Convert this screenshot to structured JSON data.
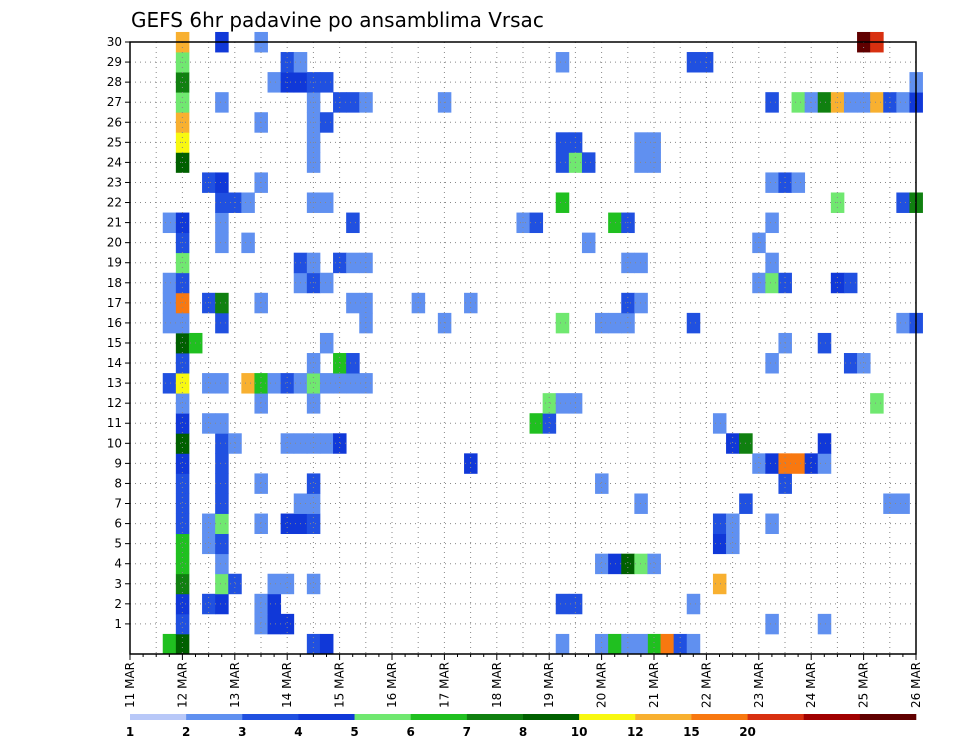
{
  "chart_data": {
    "type": "heatmap",
    "title": "GEFS 6hr padavine po ansamblima Vrsac",
    "x_tick_labels": [
      "11 MAR",
      "12 MAR",
      "13 MAR",
      "14 MAR",
      "15 MAR",
      "16 MAR",
      "17 MAR",
      "18 MAR",
      "19 MAR",
      "20 MAR",
      "21 MAR",
      "22 MAR",
      "23 MAR",
      "24 MAR",
      "25 MAR",
      "26 MAR"
    ],
    "xlim_days": [
      11,
      26
    ],
    "time_step_hours": 6,
    "y_tick_labels": [
      "1",
      "2",
      "3",
      "4",
      "5",
      "6",
      "7",
      "8",
      "9",
      "10",
      "11",
      "12",
      "13",
      "14",
      "15",
      "16",
      "17",
      "18",
      "19",
      "20",
      "21",
      "22",
      "23",
      "24",
      "25",
      "26",
      "27",
      "28",
      "29",
      "30"
    ],
    "ylim": [
      0,
      30
    ],
    "grid": "dotted",
    "colorbar": {
      "labels": [
        "1",
        "2",
        "3",
        "4",
        "5",
        "6",
        "7",
        "8",
        "10",
        "12",
        "15",
        "20"
      ],
      "colors": [
        "#b8c8f8",
        "#6090f0",
        "#2050e0",
        "#1038d8",
        "#70e870",
        "#20c020",
        "#108010",
        "#006000",
        "#f8f810",
        "#f8b030",
        "#f87810",
        "#d83010",
        "#a00000",
        "#600000"
      ]
    },
    "cells": [
      [
        11.75,
        0,
        5
      ],
      [
        12.0,
        0,
        7
      ],
      [
        14.5,
        0,
        2
      ],
      [
        14.75,
        0,
        3
      ],
      [
        19.25,
        0,
        1
      ],
      [
        20.0,
        0,
        1
      ],
      [
        20.25,
        0,
        5
      ],
      [
        20.5,
        0,
        1
      ],
      [
        21.0,
        0,
        5
      ],
      [
        21.25,
        0,
        10
      ],
      [
        21.5,
        0,
        2
      ],
      [
        21.75,
        0,
        1
      ],
      [
        20.75,
        0,
        1
      ],
      [
        12.0,
        1,
        2
      ],
      [
        13.5,
        1,
        1
      ],
      [
        13.75,
        1,
        3
      ],
      [
        14.0,
        1,
        3
      ],
      [
        23.25,
        1,
        1
      ],
      [
        24.25,
        1,
        1
      ],
      [
        12.0,
        2,
        3
      ],
      [
        12.5,
        2,
        2
      ],
      [
        12.75,
        2,
        3
      ],
      [
        13.5,
        2,
        1
      ],
      [
        13.75,
        2,
        3
      ],
      [
        19.25,
        2,
        2
      ],
      [
        19.5,
        2,
        2
      ],
      [
        21.75,
        2,
        1
      ],
      [
        12.0,
        3,
        6
      ],
      [
        12.75,
        3,
        4
      ],
      [
        13.0,
        3,
        2
      ],
      [
        13.75,
        3,
        1
      ],
      [
        14.0,
        3,
        1
      ],
      [
        14.5,
        3,
        1
      ],
      [
        22.25,
        3,
        9
      ],
      [
        12.0,
        4,
        5
      ],
      [
        12.75,
        4,
        1
      ],
      [
        20.0,
        4,
        1
      ],
      [
        20.25,
        4,
        3
      ],
      [
        20.5,
        4,
        7
      ],
      [
        20.75,
        4,
        4
      ],
      [
        21.0,
        4,
        1
      ],
      [
        12.0,
        5,
        5
      ],
      [
        12.5,
        5,
        1
      ],
      [
        12.75,
        5,
        2
      ],
      [
        22.25,
        5,
        3
      ],
      [
        22.5,
        5,
        1
      ],
      [
        12.0,
        6,
        2
      ],
      [
        12.5,
        6,
        1
      ],
      [
        12.75,
        6,
        4
      ],
      [
        13.5,
        6,
        1
      ],
      [
        14.0,
        6,
        3
      ],
      [
        14.25,
        6,
        3
      ],
      [
        14.5,
        6,
        2
      ],
      [
        22.25,
        6,
        2
      ],
      [
        22.5,
        6,
        1
      ],
      [
        23.25,
        6,
        1
      ],
      [
        12.0,
        7,
        2
      ],
      [
        12.75,
        7,
        2
      ],
      [
        14.25,
        7,
        1
      ],
      [
        14.5,
        7,
        1
      ],
      [
        20.75,
        7,
        1
      ],
      [
        22.75,
        7,
        2
      ],
      [
        25.5,
        7,
        1
      ],
      [
        25.75,
        7,
        1
      ],
      [
        12.0,
        8,
        2
      ],
      [
        12.75,
        8,
        2
      ],
      [
        13.5,
        8,
        1
      ],
      [
        14.5,
        8,
        2
      ],
      [
        20.0,
        8,
        1
      ],
      [
        23.5,
        8,
        2
      ],
      [
        12.0,
        9,
        3
      ],
      [
        12.75,
        9,
        2
      ],
      [
        17.5,
        9,
        3
      ],
      [
        23.0,
        9,
        1
      ],
      [
        23.25,
        9,
        3
      ],
      [
        23.5,
        9,
        10
      ],
      [
        23.75,
        9,
        10
      ],
      [
        24.0,
        9,
        3
      ],
      [
        24.25,
        9,
        1
      ],
      [
        12.0,
        10,
        7
      ],
      [
        12.75,
        10,
        2
      ],
      [
        13.0,
        10,
        1
      ],
      [
        14.0,
        10,
        1
      ],
      [
        14.25,
        10,
        1
      ],
      [
        14.5,
        10,
        1
      ],
      [
        14.75,
        10,
        1
      ],
      [
        15.0,
        10,
        3
      ],
      [
        22.5,
        10,
        3
      ],
      [
        22.75,
        10,
        6
      ],
      [
        24.25,
        10,
        3
      ],
      [
        12.0,
        11,
        3
      ],
      [
        12.5,
        11,
        1
      ],
      [
        12.75,
        11,
        1
      ],
      [
        18.75,
        11,
        5
      ],
      [
        19.0,
        11,
        2
      ],
      [
        22.25,
        11,
        1
      ],
      [
        12.0,
        12,
        1
      ],
      [
        13.5,
        12,
        1
      ],
      [
        14.5,
        12,
        1
      ],
      [
        19.0,
        12,
        4
      ],
      [
        19.25,
        12,
        1
      ],
      [
        19.5,
        12,
        1
      ],
      [
        25.25,
        12,
        4
      ],
      [
        11.75,
        13,
        2
      ],
      [
        12.0,
        13,
        8
      ],
      [
        12.5,
        13,
        1
      ],
      [
        12.75,
        13,
        1
      ],
      [
        13.25,
        13,
        9
      ],
      [
        13.5,
        13,
        5
      ],
      [
        13.75,
        13,
        1
      ],
      [
        14.0,
        13,
        2
      ],
      [
        14.25,
        13,
        1
      ],
      [
        14.5,
        13,
        4
      ],
      [
        14.75,
        13,
        1
      ],
      [
        15.0,
        13,
        1
      ],
      [
        15.25,
        13,
        1
      ],
      [
        15.5,
        13,
        1
      ],
      [
        12.0,
        14,
        2
      ],
      [
        14.5,
        14,
        1
      ],
      [
        15.0,
        14,
        5
      ],
      [
        15.25,
        14,
        2
      ],
      [
        23.25,
        14,
        1
      ],
      [
        24.75,
        14,
        2
      ],
      [
        25.0,
        14,
        1
      ],
      [
        12.0,
        15,
        7
      ],
      [
        12.25,
        15,
        5
      ],
      [
        14.75,
        15,
        1
      ],
      [
        23.5,
        15,
        1
      ],
      [
        24.25,
        15,
        2
      ],
      [
        11.75,
        16,
        1
      ],
      [
        12.0,
        16,
        1
      ],
      [
        12.75,
        16,
        2
      ],
      [
        15.5,
        16,
        1
      ],
      [
        17.0,
        16,
        1
      ],
      [
        19.25,
        16,
        4
      ],
      [
        20.0,
        16,
        1
      ],
      [
        20.25,
        16,
        1
      ],
      [
        20.5,
        16,
        1
      ],
      [
        21.75,
        16,
        2
      ],
      [
        25.75,
        16,
        1
      ],
      [
        26.0,
        16,
        2
      ],
      [
        11.75,
        17,
        1
      ],
      [
        12.0,
        17,
        10
      ],
      [
        12.5,
        17,
        2
      ],
      [
        12.75,
        17,
        6
      ],
      [
        13.5,
        17,
        1
      ],
      [
        15.25,
        17,
        1
      ],
      [
        15.5,
        17,
        1
      ],
      [
        16.5,
        17,
        1
      ],
      [
        17.5,
        17,
        1
      ],
      [
        20.5,
        17,
        2
      ],
      [
        20.75,
        17,
        1
      ],
      [
        11.75,
        18,
        1
      ],
      [
        12.0,
        18,
        2
      ],
      [
        14.25,
        18,
        1
      ],
      [
        14.5,
        18,
        2
      ],
      [
        14.75,
        18,
        1
      ],
      [
        23.0,
        18,
        1
      ],
      [
        23.25,
        18,
        4
      ],
      [
        23.5,
        18,
        2
      ],
      [
        24.5,
        18,
        3
      ],
      [
        24.75,
        18,
        2
      ],
      [
        12.0,
        19,
        4
      ],
      [
        14.25,
        19,
        2
      ],
      [
        14.5,
        19,
        1
      ],
      [
        15.0,
        19,
        2
      ],
      [
        15.25,
        19,
        1
      ],
      [
        15.5,
        19,
        1
      ],
      [
        20.5,
        19,
        1
      ],
      [
        20.75,
        19,
        1
      ],
      [
        23.25,
        19,
        1
      ],
      [
        12.0,
        20,
        2
      ],
      [
        12.75,
        20,
        1
      ],
      [
        13.25,
        20,
        1
      ],
      [
        19.75,
        20,
        1
      ],
      [
        23.0,
        20,
        1
      ],
      [
        11.75,
        21,
        1
      ],
      [
        12.0,
        21,
        3
      ],
      [
        12.75,
        21,
        1
      ],
      [
        15.25,
        21,
        2
      ],
      [
        18.5,
        21,
        1
      ],
      [
        18.75,
        21,
        2
      ],
      [
        20.25,
        21,
        5
      ],
      [
        20.5,
        21,
        2
      ],
      [
        23.25,
        21,
        1
      ],
      [
        12.75,
        22,
        2
      ],
      [
        13.0,
        22,
        2
      ],
      [
        13.25,
        22,
        1
      ],
      [
        14.5,
        22,
        1
      ],
      [
        14.75,
        22,
        1
      ],
      [
        19.25,
        22,
        5
      ],
      [
        24.5,
        22,
        4
      ],
      [
        25.75,
        22,
        2
      ],
      [
        26.0,
        22,
        6
      ],
      [
        12.5,
        23,
        2
      ],
      [
        12.75,
        23,
        3
      ],
      [
        13.5,
        23,
        1
      ],
      [
        23.25,
        23,
        1
      ],
      [
        23.5,
        23,
        2
      ],
      [
        23.75,
        23,
        1
      ],
      [
        12.0,
        24,
        7
      ],
      [
        14.5,
        24,
        1
      ],
      [
        19.25,
        24,
        2
      ],
      [
        19.5,
        24,
        4
      ],
      [
        19.75,
        24,
        2
      ],
      [
        20.75,
        24,
        1
      ],
      [
        21.0,
        24,
        1
      ],
      [
        12.0,
        25,
        8
      ],
      [
        14.5,
        25,
        1
      ],
      [
        19.25,
        25,
        2
      ],
      [
        19.5,
        25,
        2
      ],
      [
        20.75,
        25,
        1
      ],
      [
        21.0,
        25,
        1
      ],
      [
        12.0,
        26,
        9
      ],
      [
        13.5,
        26,
        1
      ],
      [
        14.5,
        26,
        1
      ],
      [
        14.75,
        26,
        2
      ],
      [
        12.0,
        27,
        4
      ],
      [
        12.75,
        27,
        1
      ],
      [
        14.5,
        27,
        1
      ],
      [
        15.0,
        27,
        2
      ],
      [
        15.25,
        27,
        2
      ],
      [
        15.5,
        27,
        1
      ],
      [
        17.0,
        27,
        1
      ],
      [
        23.25,
        27,
        2
      ],
      [
        23.75,
        27,
        4
      ],
      [
        24.0,
        27,
        1
      ],
      [
        24.25,
        27,
        6
      ],
      [
        24.5,
        27,
        9
      ],
      [
        24.75,
        27,
        1
      ],
      [
        25.0,
        27,
        1
      ],
      [
        25.25,
        27,
        9
      ],
      [
        25.5,
        27,
        2
      ],
      [
        25.75,
        27,
        1
      ],
      [
        26.0,
        27,
        3
      ],
      [
        12.0,
        28,
        6
      ],
      [
        13.75,
        28,
        1
      ],
      [
        14.0,
        28,
        3
      ],
      [
        14.25,
        28,
        3
      ],
      [
        14.5,
        28,
        2
      ],
      [
        14.75,
        28,
        2
      ],
      [
        26.0,
        28,
        1
      ],
      [
        12.0,
        29,
        4
      ],
      [
        14.0,
        29,
        2
      ],
      [
        14.25,
        29,
        1
      ],
      [
        19.25,
        29,
        1
      ],
      [
        21.75,
        29,
        2
      ],
      [
        22.0,
        29,
        2
      ],
      [
        12.0,
        30,
        9
      ],
      [
        12.75,
        30,
        3
      ],
      [
        13.5,
        30,
        1
      ],
      [
        25.0,
        30,
        13
      ],
      [
        25.25,
        30,
        11
      ]
    ]
  }
}
